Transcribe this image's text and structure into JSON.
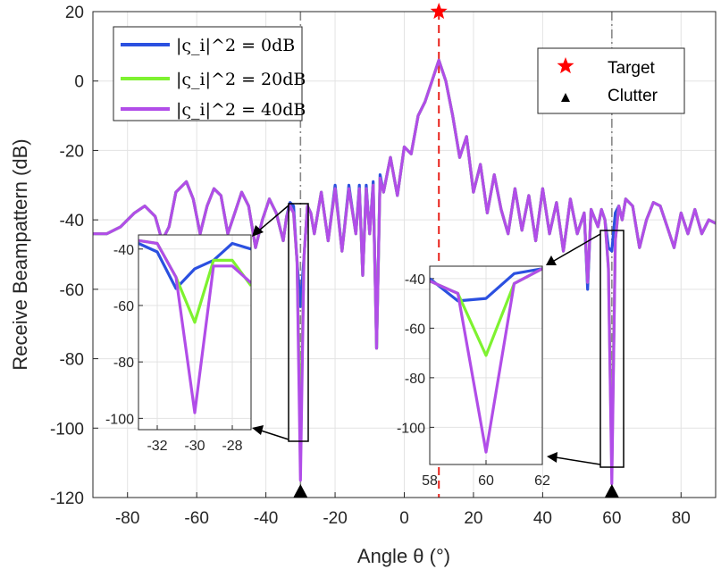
{
  "chart_data": {
    "type": "line",
    "xlabel": "Angle θ (°)",
    "ylabel": "Receive Beampattern (dB)",
    "xlim": [
      -90,
      90
    ],
    "ylim": [
      -120,
      20
    ],
    "x_ticks": [
      -80,
      -60,
      -40,
      -20,
      0,
      20,
      40,
      60,
      80
    ],
    "y_ticks": [
      20,
      0,
      -20,
      -40,
      -60,
      -80,
      -100,
      -120
    ],
    "grid": true,
    "legend_position": "top-left",
    "series": [
      {
        "name": "|ς_i|^2 = 0dB",
        "color": "#2b50e0",
        "x": [
          -90,
          -86,
          -82,
          -78,
          -75,
          -72,
          -70,
          -68,
          -66,
          -63,
          -61,
          -59,
          -57,
          -55,
          -53,
          -51,
          -49,
          -47,
          -45,
          -43,
          -41,
          -39,
          -37,
          -35,
          -34,
          -33,
          -32,
          -31,
          -30,
          -29,
          -28,
          -27,
          -26,
          -24,
          -22,
          -20,
          -18,
          -16,
          -14,
          -13,
          -12,
          -11,
          -10,
          -9,
          -8,
          -7,
          -6,
          -4,
          -2,
          0,
          2,
          4,
          6,
          8,
          10,
          12,
          14,
          16,
          18,
          20,
          22,
          24,
          26,
          28,
          30,
          32,
          34,
          36,
          38,
          40,
          42,
          44,
          46,
          48,
          50,
          52,
          53,
          54,
          56,
          57,
          58,
          59,
          60,
          61,
          62,
          63,
          64,
          66,
          68,
          70,
          72,
          74,
          76,
          78,
          80,
          82,
          84,
          86,
          88,
          90
        ],
        "y": [
          -44,
          -44,
          -42,
          -38,
          -36,
          -39,
          -46,
          -42,
          -32,
          -29,
          -34,
          -44,
          -36,
          -31,
          -33,
          -44,
          -38,
          -32,
          -36,
          -48,
          -40,
          -34,
          -38,
          -46,
          -39,
          -35,
          -36,
          -52,
          -65,
          -51,
          -36,
          -38,
          -44,
          -32,
          -46,
          -30,
          -49,
          -30,
          -44,
          -30,
          -56,
          -30,
          -44,
          -29,
          -77,
          -27,
          -32,
          -22,
          -33,
          -19,
          -21,
          -10,
          -6,
          0,
          6,
          0,
          -10,
          -22,
          -16,
          -32,
          -24,
          -38,
          -27,
          -37,
          -44,
          -31,
          -43,
          -33,
          -46,
          -31,
          -44,
          -35,
          -49,
          -34,
          -44,
          -38,
          -60,
          -37,
          -42,
          -37,
          -40,
          -48,
          -49,
          -38,
          -36,
          -40,
          -34,
          -36,
          -48,
          -40,
          -35,
          -36,
          -42,
          -48,
          -38,
          -44,
          -37,
          -44,
          -40,
          -41
        ]
      },
      {
        "name": "|ς_i|^2 = 20dB",
        "color": "#7ef230",
        "x": [
          -90,
          -86,
          -82,
          -78,
          -75,
          -72,
          -70,
          -68,
          -66,
          -63,
          -61,
          -59,
          -57,
          -55,
          -53,
          -51,
          -49,
          -47,
          -45,
          -43,
          -41,
          -39,
          -37,
          -35,
          -34,
          -33,
          -32,
          -31,
          -30,
          -29,
          -28,
          -27,
          -26,
          -24,
          -22,
          -20,
          -18,
          -16,
          -14,
          -13,
          -12,
          -11,
          -10,
          -9,
          -8,
          -7,
          -6,
          -4,
          -2,
          0,
          2,
          4,
          6,
          8,
          10,
          12,
          14,
          16,
          18,
          20,
          22,
          24,
          26,
          28,
          30,
          32,
          34,
          36,
          38,
          40,
          42,
          44,
          46,
          48,
          50,
          52,
          53,
          54,
          56,
          57,
          58,
          59,
          60,
          61,
          62,
          63,
          64,
          66,
          68,
          70,
          72,
          74,
          76,
          78,
          80,
          82,
          84,
          86,
          88,
          90
        ],
        "y": [
          -44,
          -44,
          -42,
          -38,
          -36,
          -39,
          -46,
          -42,
          -32,
          -29,
          -34,
          -44,
          -36,
          -31,
          -33,
          -44,
          -38,
          -32,
          -36,
          -48,
          -40,
          -34,
          -38,
          -46,
          -39,
          -36,
          -38,
          -52,
          -104,
          -51,
          -36,
          -38,
          -44,
          -32,
          -46,
          -31,
          -49,
          -31,
          -44,
          -31,
          -56,
          -31,
          -44,
          -30,
          -77,
          -28,
          -32,
          -22,
          -33,
          -19,
          -21,
          -10,
          -6,
          0,
          6,
          0,
          -10,
          -22,
          -16,
          -32,
          -24,
          -38,
          -27,
          -37,
          -44,
          -31,
          -43,
          -33,
          -46,
          -31,
          -44,
          -35,
          -49,
          -34,
          -44,
          -38,
          -58,
          -37,
          -42,
          -37,
          -40,
          -54,
          -112,
          -46,
          -36,
          -40,
          -34,
          -36,
          -48,
          -40,
          -35,
          -36,
          -42,
          -48,
          -38,
          -44,
          -37,
          -44,
          -40,
          -41
        ]
      },
      {
        "name": "|ς_i|^2 = 40dB",
        "color": "#b14de8",
        "x": [
          -90,
          -86,
          -82,
          -78,
          -75,
          -72,
          -70,
          -68,
          -66,
          -63,
          -61,
          -59,
          -57,
          -55,
          -53,
          -51,
          -49,
          -47,
          -45,
          -43,
          -41,
          -39,
          -37,
          -35,
          -34,
          -33,
          -32,
          -31,
          -30,
          -29,
          -28,
          -27,
          -26,
          -24,
          -22,
          -20,
          -18,
          -16,
          -14,
          -13,
          -12,
          -11,
          -10,
          -9,
          -8,
          -7,
          -6,
          -4,
          -2,
          0,
          2,
          4,
          6,
          8,
          10,
          12,
          14,
          16,
          18,
          20,
          22,
          24,
          26,
          28,
          30,
          32,
          34,
          36,
          38,
          40,
          42,
          44,
          46,
          48,
          50,
          52,
          53,
          54,
          56,
          57,
          58,
          59,
          60,
          61,
          62,
          63,
          64,
          66,
          68,
          70,
          72,
          74,
          76,
          78,
          80,
          82,
          84,
          86,
          88,
          90
        ],
        "y": [
          -44,
          -44,
          -42,
          -38,
          -36,
          -39,
          -46,
          -42,
          -32,
          -29,
          -34,
          -44,
          -36,
          -31,
          -33,
          -44,
          -38,
          -32,
          -36,
          -48,
          -40,
          -34,
          -38,
          -46,
          -39,
          -36,
          -38,
          -52,
          -115,
          -51,
          -36,
          -38,
          -44,
          -32,
          -46,
          -31,
          -49,
          -31,
          -44,
          -31,
          -56,
          -31,
          -44,
          -30,
          -77,
          -28,
          -32,
          -22,
          -33,
          -19,
          -21,
          -10,
          -6,
          0,
          6,
          0,
          -10,
          -22,
          -16,
          -32,
          -24,
          -38,
          -27,
          -37,
          -44,
          -31,
          -43,
          -33,
          -46,
          -31,
          -44,
          -35,
          -49,
          -34,
          -44,
          -38,
          -58,
          -37,
          -42,
          -37,
          -40,
          -54,
          -116,
          -46,
          -36,
          -40,
          -34,
          -36,
          -48,
          -40,
          -35,
          -36,
          -42,
          -48,
          -38,
          -44,
          -37,
          -44,
          -40,
          -41
        ]
      }
    ],
    "markers": {
      "target": {
        "name": "Target",
        "x": 10,
        "y": 20,
        "color": "#ff0000",
        "shape": "star"
      },
      "clutter": {
        "name": "Clutter",
        "x": [
          -30,
          60
        ],
        "y": -120,
        "color": "#000000",
        "shape": "triangle"
      }
    },
    "reference_lines": [
      {
        "x": 10,
        "style": "dashed",
        "color": "#e8231c"
      },
      {
        "x": -30,
        "style": "dash-dot",
        "color": "#888888"
      },
      {
        "x": 60,
        "style": "dash-dot",
        "color": "#888888"
      }
    ],
    "insets": [
      {
        "name": "left-zoom",
        "xlim": [
          -33,
          -27
        ],
        "ylim": [
          -104,
          -35
        ],
        "x_ticks": [
          -32,
          -30,
          -28
        ],
        "y_ticks": [
          -40,
          -60,
          -80,
          -100
        ],
        "series": [
          {
            "x": [
              -33,
              -32,
              -31,
              -30,
              -29,
              -28,
              -27
            ],
            "y": [
              -38,
              -41,
              -54,
              -47,
              -44,
              -38,
              -40
            ]
          },
          {
            "x": [
              -33,
              -32,
              -31,
              -30,
              -29,
              -28,
              -27
            ],
            "y": [
              -37,
              -38,
              -50,
              -66,
              -44,
              -44,
              -53
            ]
          },
          {
            "x": [
              -33,
              -32,
              -31,
              -30,
              -29,
              -28,
              -27
            ],
            "y": [
              -37,
              -38,
              -50,
              -98,
              -46,
              -46,
              -52
            ]
          }
        ]
      },
      {
        "name": "right-zoom",
        "xlim": [
          58,
          62
        ],
        "ylim": [
          -115,
          -35
        ],
        "x_ticks": [
          58,
          60,
          62
        ],
        "y_ticks": [
          -40,
          -60,
          -80,
          -100
        ],
        "series": [
          {
            "x": [
              58,
              59,
              60,
              61,
              62
            ],
            "y": [
              -40,
              -49,
              -48,
              -38,
              -36
            ]
          },
          {
            "x": [
              58,
              59,
              60,
              61,
              62
            ],
            "y": [
              -41,
              -46,
              -71,
              -42,
              -36
            ]
          },
          {
            "x": [
              58,
              59,
              60,
              61,
              62
            ],
            "y": [
              -41,
              -46,
              -110,
              -42,
              -36
            ]
          }
        ]
      }
    ]
  }
}
